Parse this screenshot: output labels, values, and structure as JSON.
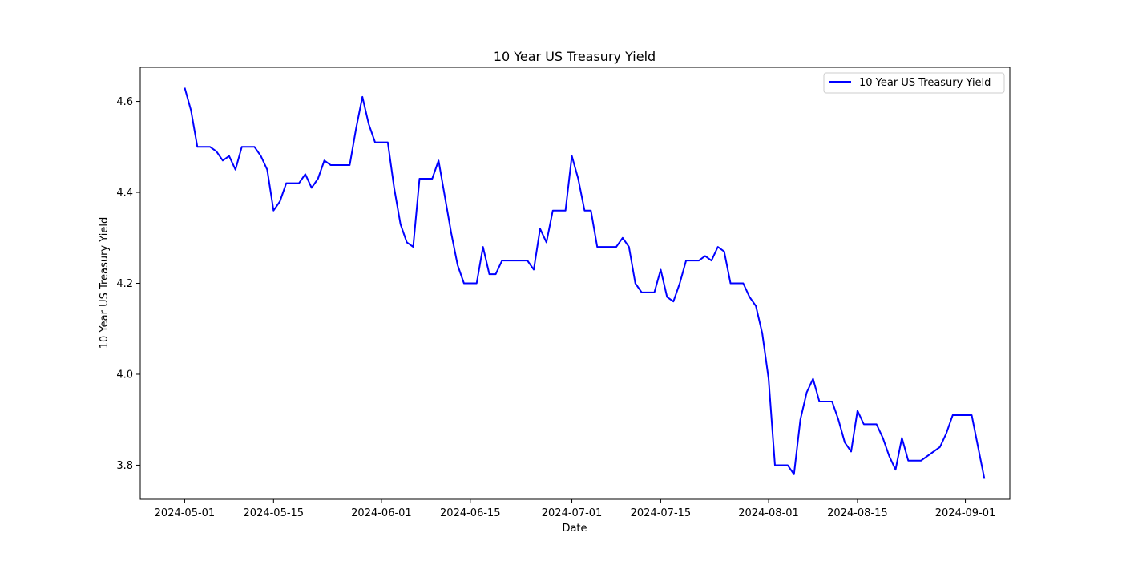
{
  "chart_data": {
    "type": "line",
    "title": "10 Year US Treasury Yield",
    "xlabel": "Date",
    "ylabel": "10 Year US Treasury Yield",
    "legend_placement": "top-right",
    "grid": false,
    "xlim": [
      "2024-04-24",
      "2024-09-08"
    ],
    "ylim": [
      3.725,
      4.675
    ],
    "x_ticks": [
      "2024-05-01",
      "2024-05-15",
      "2024-06-01",
      "2024-06-15",
      "2024-07-01",
      "2024-07-15",
      "2024-08-01",
      "2024-08-15",
      "2024-09-01"
    ],
    "y_ticks": [
      3.8,
      4.0,
      4.2,
      4.4,
      4.6
    ],
    "y_tick_labels": [
      "3.8",
      "4.0",
      "4.2",
      "4.4",
      "4.6"
    ],
    "series": [
      {
        "name": "10 Year US Treasury Yield",
        "color": "#0000ff",
        "points": [
          [
            "2024-05-01",
            4.63
          ],
          [
            "2024-05-02",
            4.58
          ],
          [
            "2024-05-03",
            4.5
          ],
          [
            "2024-05-04",
            4.5
          ],
          [
            "2024-05-05",
            4.5
          ],
          [
            "2024-05-06",
            4.49
          ],
          [
            "2024-05-07",
            4.47
          ],
          [
            "2024-05-08",
            4.48
          ],
          [
            "2024-05-09",
            4.45
          ],
          [
            "2024-05-10",
            4.5
          ],
          [
            "2024-05-11",
            4.5
          ],
          [
            "2024-05-12",
            4.5
          ],
          [
            "2024-05-13",
            4.48
          ],
          [
            "2024-05-14",
            4.45
          ],
          [
            "2024-05-15",
            4.36
          ],
          [
            "2024-05-16",
            4.38
          ],
          [
            "2024-05-17",
            4.42
          ],
          [
            "2024-05-18",
            4.42
          ],
          [
            "2024-05-19",
            4.42
          ],
          [
            "2024-05-20",
            4.44
          ],
          [
            "2024-05-21",
            4.41
          ],
          [
            "2024-05-22",
            4.43
          ],
          [
            "2024-05-23",
            4.47
          ],
          [
            "2024-05-24",
            4.46
          ],
          [
            "2024-05-25",
            4.46
          ],
          [
            "2024-05-26",
            4.46
          ],
          [
            "2024-05-27",
            4.46
          ],
          [
            "2024-05-28",
            4.54
          ],
          [
            "2024-05-29",
            4.61
          ],
          [
            "2024-05-30",
            4.55
          ],
          [
            "2024-05-31",
            4.51
          ],
          [
            "2024-06-01",
            4.51
          ],
          [
            "2024-06-02",
            4.51
          ],
          [
            "2024-06-03",
            4.41
          ],
          [
            "2024-06-04",
            4.33
          ],
          [
            "2024-06-05",
            4.29
          ],
          [
            "2024-06-06",
            4.28
          ],
          [
            "2024-06-07",
            4.43
          ],
          [
            "2024-06-08",
            4.43
          ],
          [
            "2024-06-09",
            4.43
          ],
          [
            "2024-06-10",
            4.47
          ],
          [
            "2024-06-11",
            4.39
          ],
          [
            "2024-06-12",
            4.31
          ],
          [
            "2024-06-13",
            4.24
          ],
          [
            "2024-06-14",
            4.2
          ],
          [
            "2024-06-15",
            4.2
          ],
          [
            "2024-06-16",
            4.2
          ],
          [
            "2024-06-17",
            4.28
          ],
          [
            "2024-06-18",
            4.22
          ],
          [
            "2024-06-19",
            4.22
          ],
          [
            "2024-06-20",
            4.25
          ],
          [
            "2024-06-21",
            4.25
          ],
          [
            "2024-06-22",
            4.25
          ],
          [
            "2024-06-23",
            4.25
          ],
          [
            "2024-06-24",
            4.25
          ],
          [
            "2024-06-25",
            4.23
          ],
          [
            "2024-06-26",
            4.32
          ],
          [
            "2024-06-27",
            4.29
          ],
          [
            "2024-06-28",
            4.36
          ],
          [
            "2024-06-29",
            4.36
          ],
          [
            "2024-06-30",
            4.36
          ],
          [
            "2024-07-01",
            4.48
          ],
          [
            "2024-07-02",
            4.43
          ],
          [
            "2024-07-03",
            4.36
          ],
          [
            "2024-07-04",
            4.36
          ],
          [
            "2024-07-05",
            4.28
          ],
          [
            "2024-07-06",
            4.28
          ],
          [
            "2024-07-07",
            4.28
          ],
          [
            "2024-07-08",
            4.28
          ],
          [
            "2024-07-09",
            4.3
          ],
          [
            "2024-07-10",
            4.28
          ],
          [
            "2024-07-11",
            4.2
          ],
          [
            "2024-07-12",
            4.18
          ],
          [
            "2024-07-13",
            4.18
          ],
          [
            "2024-07-14",
            4.18
          ],
          [
            "2024-07-15",
            4.23
          ],
          [
            "2024-07-16",
            4.17
          ],
          [
            "2024-07-17",
            4.16
          ],
          [
            "2024-07-18",
            4.2
          ],
          [
            "2024-07-19",
            4.25
          ],
          [
            "2024-07-20",
            4.25
          ],
          [
            "2024-07-21",
            4.25
          ],
          [
            "2024-07-22",
            4.26
          ],
          [
            "2024-07-23",
            4.25
          ],
          [
            "2024-07-24",
            4.28
          ],
          [
            "2024-07-25",
            4.27
          ],
          [
            "2024-07-26",
            4.2
          ],
          [
            "2024-07-27",
            4.2
          ],
          [
            "2024-07-28",
            4.2
          ],
          [
            "2024-07-29",
            4.17
          ],
          [
            "2024-07-30",
            4.15
          ],
          [
            "2024-07-31",
            4.09
          ],
          [
            "2024-08-01",
            3.99
          ],
          [
            "2024-08-02",
            3.8
          ],
          [
            "2024-08-03",
            3.8
          ],
          [
            "2024-08-04",
            3.8
          ],
          [
            "2024-08-05",
            3.78
          ],
          [
            "2024-08-06",
            3.9
          ],
          [
            "2024-08-07",
            3.96
          ],
          [
            "2024-08-08",
            3.99
          ],
          [
            "2024-08-09",
            3.94
          ],
          [
            "2024-08-10",
            3.94
          ],
          [
            "2024-08-11",
            3.94
          ],
          [
            "2024-08-12",
            3.9
          ],
          [
            "2024-08-13",
            3.85
          ],
          [
            "2024-08-14",
            3.83
          ],
          [
            "2024-08-15",
            3.92
          ],
          [
            "2024-08-16",
            3.89
          ],
          [
            "2024-08-17",
            3.89
          ],
          [
            "2024-08-18",
            3.89
          ],
          [
            "2024-08-19",
            3.86
          ],
          [
            "2024-08-20",
            3.82
          ],
          [
            "2024-08-21",
            3.79
          ],
          [
            "2024-08-22",
            3.86
          ],
          [
            "2024-08-23",
            3.81
          ],
          [
            "2024-08-24",
            3.81
          ],
          [
            "2024-08-25",
            3.81
          ],
          [
            "2024-08-28",
            3.84
          ],
          [
            "2024-08-29",
            3.87
          ],
          [
            "2024-08-30",
            3.91
          ],
          [
            "2024-08-31",
            3.91
          ],
          [
            "2024-09-01",
            3.91
          ],
          [
            "2024-09-02",
            3.91
          ],
          [
            "2024-09-03",
            3.84
          ],
          [
            "2024-09-04",
            3.77
          ]
        ]
      }
    ]
  }
}
